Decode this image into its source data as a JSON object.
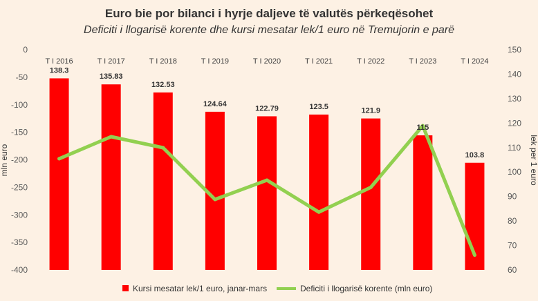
{
  "chart_data": {
    "type": "bar+line",
    "title": "Euro bie por bilanci i hyrje daljeve të valutës përkeqësohet",
    "subtitle": "Deficiti i llogarisë korente dhe kursi mesatar lek/1 euro në Tremujorin e parë",
    "categories": [
      "T I 2016",
      "T I 2017",
      "T I 2018",
      "T I 2019",
      "T I 2020",
      "T I 2021",
      "T I 2022",
      "T I 2023",
      "T I 2024"
    ],
    "series": [
      {
        "name": "Kursi mesatar lek/1 euro, janar-mars",
        "type": "bar",
        "axis": "right",
        "color": "#ff0000",
        "values": [
          138.3,
          135.83,
          132.53,
          124.64,
          122.79,
          123.5,
          121.9,
          115,
          103.8
        ],
        "labels": [
          "138.3",
          "135.83",
          "132.53",
          "124.64",
          "122.79",
          "123.5",
          "121.9",
          "115",
          "103.8"
        ]
      },
      {
        "name": "Deficiti i llogarisë korente (mln euro)",
        "type": "line",
        "axis": "left",
        "color": "#92d050",
        "values": [
          -198,
          -158,
          -178,
          -272,
          -237,
          -295,
          -250,
          -138,
          -373
        ]
      }
    ],
    "left_axis": {
      "label": "mln euro",
      "ylim": [
        -400,
        0
      ],
      "ticks": [
        0,
        -50,
        -100,
        -150,
        -200,
        -250,
        -300,
        -350,
        -400
      ]
    },
    "right_axis": {
      "label": "lek per 1 euro",
      "ylim": [
        60,
        150
      ],
      "ticks": [
        150,
        140,
        130,
        120,
        110,
        100,
        90,
        80,
        70,
        60
      ]
    },
    "legend_position": "bottom",
    "grid": false
  }
}
